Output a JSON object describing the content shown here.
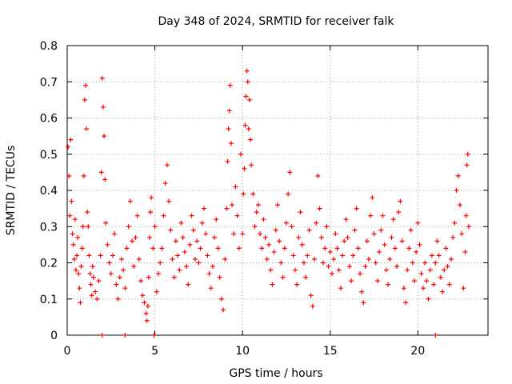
{
  "chart_data": {
    "type": "scatter",
    "title": "Day 348 of 2024, SRMTID for receiver falk",
    "xlabel": "GPS time / hours",
    "ylabel": "SRMTID / TECUs",
    "xlim": [
      0,
      24
    ],
    "ylim": [
      0,
      0.8
    ],
    "xticks": [
      0,
      5,
      10,
      15,
      20
    ],
    "xtick_labels": [
      "0",
      "5",
      "10",
      "15",
      "20"
    ],
    "yticks": [
      0,
      0.1,
      0.2,
      0.3,
      0.4,
      0.5,
      0.6,
      0.7,
      0.8
    ],
    "ytick_labels": [
      "0",
      "0.1",
      "0.2",
      "0.3",
      "0.4",
      "0.5",
      "0.6",
      "0.7",
      "0.8"
    ],
    "grid": true,
    "marker": "+",
    "color": "#ff0000",
    "series": [
      {
        "name": "SRMTID",
        "points": [
          [
            0.05,
            0.52
          ],
          [
            0.1,
            0.44
          ],
          [
            0.15,
            0.33
          ],
          [
            0.2,
            0.54
          ],
          [
            0.25,
            0.37
          ],
          [
            0.3,
            0.28
          ],
          [
            0.35,
            0.25
          ],
          [
            0.4,
            0.21
          ],
          [
            0.45,
            0.32
          ],
          [
            0.5,
            0.18
          ],
          [
            0.55,
            0.22
          ],
          [
            0.6,
            0.27
          ],
          [
            0.65,
            0.17
          ],
          [
            0.7,
            0.13
          ],
          [
            0.75,
            0.09
          ],
          [
            0.8,
            0.19
          ],
          [
            0.85,
            0.24
          ],
          [
            0.9,
            0.3
          ],
          [
            0.95,
            0.44
          ],
          [
            1.0,
            0.65
          ],
          [
            1.05,
            0.69
          ],
          [
            1.1,
            0.57
          ],
          [
            1.15,
            0.34
          ],
          [
            1.2,
            0.3
          ],
          [
            1.25,
            0.22
          ],
          [
            1.3,
            0.17
          ],
          [
            1.35,
            0.14
          ],
          [
            1.4,
            0.11
          ],
          [
            1.45,
            0.19
          ],
          [
            1.5,
            0.16
          ],
          [
            1.6,
            0.12
          ],
          [
            1.7,
            0.1
          ],
          [
            1.8,
            0.15
          ],
          [
            1.9,
            0.22
          ],
          [
            1.95,
            0.45
          ],
          [
            2.0,
            0.71
          ],
          [
            2.05,
            0.63
          ],
          [
            2.1,
            0.55
          ],
          [
            2.15,
            0.43
          ],
          [
            2.2,
            0.31
          ],
          [
            2.3,
            0.25
          ],
          [
            2.4,
            0.2
          ],
          [
            2.5,
            0.17
          ],
          [
            2.6,
            0.22
          ],
          [
            2.7,
            0.28
          ],
          [
            2.8,
            0.14
          ],
          [
            2.9,
            0.1
          ],
          [
            3.0,
            0.16
          ],
          [
            3.1,
            0.21
          ],
          [
            3.2,
            0.18
          ],
          [
            3.3,
            0.13
          ],
          [
            3.4,
            0.24
          ],
          [
            3.5,
            0.3
          ],
          [
            3.6,
            0.37
          ],
          [
            3.7,
            0.26
          ],
          [
            3.8,
            0.19
          ],
          [
            3.9,
            0.27
          ],
          [
            4.0,
            0.33
          ],
          [
            4.1,
            0.21
          ],
          [
            4.2,
            0.15
          ],
          [
            4.3,
            0.11
          ],
          [
            4.4,
            0.09
          ],
          [
            4.5,
            0.06
          ],
          [
            4.55,
            0.04
          ],
          [
            4.6,
            0.08
          ],
          [
            4.65,
            0.16
          ],
          [
            4.7,
            0.27
          ],
          [
            4.75,
            0.34
          ],
          [
            4.8,
            0.38
          ],
          [
            4.9,
            0.24
          ],
          [
            5.0,
            0.3
          ],
          [
            5.1,
            0.12
          ],
          [
            5.2,
            0.17
          ],
          [
            5.3,
            0.2
          ],
          [
            5.4,
            0.24
          ],
          [
            5.5,
            0.33
          ],
          [
            5.6,
            0.42
          ],
          [
            5.7,
            0.47
          ],
          [
            5.8,
            0.37
          ],
          [
            5.9,
            0.29
          ],
          [
            6.0,
            0.21
          ],
          [
            6.1,
            0.16
          ],
          [
            6.2,
            0.26
          ],
          [
            6.3,
            0.22
          ],
          [
            6.4,
            0.18
          ],
          [
            6.5,
            0.31
          ],
          [
            6.6,
            0.27
          ],
          [
            6.7,
            0.23
          ],
          [
            6.8,
            0.19
          ],
          [
            6.9,
            0.14
          ],
          [
            7.0,
            0.25
          ],
          [
            7.1,
            0.33
          ],
          [
            7.2,
            0.29
          ],
          [
            7.3,
            0.21
          ],
          [
            7.4,
            0.26
          ],
          [
            7.5,
            0.2
          ],
          [
            7.6,
            0.24
          ],
          [
            7.7,
            0.31
          ],
          [
            7.8,
            0.35
          ],
          [
            7.9,
            0.28
          ],
          [
            8.0,
            0.22
          ],
          [
            8.1,
            0.17
          ],
          [
            8.2,
            0.13
          ],
          [
            8.3,
            0.19
          ],
          [
            8.4,
            0.27
          ],
          [
            8.5,
            0.32
          ],
          [
            8.6,
            0.24
          ],
          [
            8.7,
            0.16
          ],
          [
            8.8,
            0.1
          ],
          [
            8.9,
            0.07
          ],
          [
            9.0,
            0.21
          ],
          [
            9.1,
            0.35
          ],
          [
            9.15,
            0.48
          ],
          [
            9.2,
            0.57
          ],
          [
            9.25,
            0.62
          ],
          [
            9.3,
            0.69
          ],
          [
            9.35,
            0.53
          ],
          [
            9.4,
            0.36
          ],
          [
            9.5,
            0.28
          ],
          [
            9.6,
            0.41
          ],
          [
            9.7,
            0.33
          ],
          [
            9.8,
            0.24
          ],
          [
            9.9,
            0.5
          ],
          [
            10.0,
            0.28
          ],
          [
            10.05,
            0.39
          ],
          [
            10.1,
            0.46
          ],
          [
            10.15,
            0.58
          ],
          [
            10.2,
            0.66
          ],
          [
            10.25,
            0.73
          ],
          [
            10.3,
            0.7
          ],
          [
            10.35,
            0.57
          ],
          [
            10.4,
            0.65
          ],
          [
            10.45,
            0.54
          ],
          [
            10.5,
            0.47
          ],
          [
            10.6,
            0.39
          ],
          [
            10.7,
            0.3
          ],
          [
            10.8,
            0.34
          ],
          [
            10.9,
            0.36
          ],
          [
            11.0,
            0.28
          ],
          [
            11.1,
            0.24
          ],
          [
            11.2,
            0.32
          ],
          [
            11.3,
            0.27
          ],
          [
            11.4,
            0.21
          ],
          [
            11.5,
            0.25
          ],
          [
            11.6,
            0.18
          ],
          [
            11.7,
            0.14
          ],
          [
            11.8,
            0.23
          ],
          [
            11.9,
            0.29
          ],
          [
            12.0,
            0.36
          ],
          [
            12.1,
            0.26
          ],
          [
            12.2,
            0.2
          ],
          [
            12.3,
            0.16
          ],
          [
            12.4,
            0.24
          ],
          [
            12.5,
            0.31
          ],
          [
            12.6,
            0.39
          ],
          [
            12.7,
            0.45
          ],
          [
            12.8,
            0.3
          ],
          [
            12.9,
            0.22
          ],
          [
            13.0,
            0.18
          ],
          [
            13.1,
            0.14
          ],
          [
            13.2,
            0.27
          ],
          [
            13.3,
            0.34
          ],
          [
            13.4,
            0.25
          ],
          [
            13.5,
            0.2
          ],
          [
            13.6,
            0.16
          ],
          [
            13.7,
            0.22
          ],
          [
            13.8,
            0.29
          ],
          [
            13.9,
            0.11
          ],
          [
            14.0,
            0.08
          ],
          [
            14.1,
            0.21
          ],
          [
            14.2,
            0.31
          ],
          [
            14.3,
            0.44
          ],
          [
            14.4,
            0.35
          ],
          [
            14.5,
            0.27
          ],
          [
            14.6,
            0.2
          ],
          [
            14.7,
            0.24
          ],
          [
            14.8,
            0.3
          ],
          [
            14.9,
            0.19
          ],
          [
            15.0,
            0.23
          ],
          [
            15.1,
            0.17
          ],
          [
            15.2,
            0.21
          ],
          [
            15.3,
            0.28
          ],
          [
            15.4,
            0.24
          ],
          [
            15.5,
            0.18
          ],
          [
            15.6,
            0.13
          ],
          [
            15.7,
            0.22
          ],
          [
            15.8,
            0.26
          ],
          [
            15.9,
            0.32
          ],
          [
            16.0,
            0.27
          ],
          [
            16.1,
            0.19
          ],
          [
            16.2,
            0.15
          ],
          [
            16.3,
            0.22
          ],
          [
            16.4,
            0.29
          ],
          [
            16.5,
            0.35
          ],
          [
            16.6,
            0.24
          ],
          [
            16.7,
            0.17
          ],
          [
            16.8,
            0.12
          ],
          [
            16.9,
            0.09
          ],
          [
            17.0,
            0.19
          ],
          [
            17.1,
            0.26
          ],
          [
            17.2,
            0.21
          ],
          [
            17.3,
            0.33
          ],
          [
            17.4,
            0.38
          ],
          [
            17.5,
            0.28
          ],
          [
            17.6,
            0.2
          ],
          [
            17.7,
            0.15
          ],
          [
            17.8,
            0.23
          ],
          [
            17.9,
            0.29
          ],
          [
            18.0,
            0.33
          ],
          [
            18.1,
            0.25
          ],
          [
            18.2,
            0.18
          ],
          [
            18.3,
            0.14
          ],
          [
            18.4,
            0.21
          ],
          [
            18.5,
            0.27
          ],
          [
            18.6,
            0.32
          ],
          [
            18.7,
            0.24
          ],
          [
            18.8,
            0.19
          ],
          [
            18.9,
            0.34
          ],
          [
            19.0,
            0.37
          ],
          [
            19.1,
            0.26
          ],
          [
            19.2,
            0.13
          ],
          [
            19.3,
            0.09
          ],
          [
            19.4,
            0.18
          ],
          [
            19.5,
            0.24
          ],
          [
            19.6,
            0.29
          ],
          [
            19.7,
            0.2
          ],
          [
            19.8,
            0.15
          ],
          [
            19.9,
            0.23
          ],
          [
            20.0,
            0.31
          ],
          [
            20.1,
            0.25
          ],
          [
            20.2,
            0.17
          ],
          [
            20.3,
            0.13
          ],
          [
            20.4,
            0.2
          ],
          [
            20.5,
            0.15
          ],
          [
            20.6,
            0.1
          ],
          [
            20.7,
            0.18
          ],
          [
            20.8,
            0.22
          ],
          [
            20.9,
            0.14
          ],
          [
            21.0,
            0.2
          ],
          [
            21.1,
            0.26
          ],
          [
            21.2,
            0.22
          ],
          [
            21.3,
            0.16
          ],
          [
            21.4,
            0.12
          ],
          [
            21.5,
            0.18
          ],
          [
            21.6,
            0.24
          ],
          [
            21.7,
            0.19
          ],
          [
            21.8,
            0.14
          ],
          [
            21.9,
            0.21
          ],
          [
            22.0,
            0.27
          ],
          [
            22.1,
            0.31
          ],
          [
            22.2,
            0.4
          ],
          [
            22.3,
            0.44
          ],
          [
            22.4,
            0.36
          ],
          [
            22.5,
            0.28
          ],
          [
            22.6,
            0.13
          ],
          [
            22.7,
            0.23
          ],
          [
            22.75,
            0.33
          ],
          [
            22.8,
            0.47
          ],
          [
            22.85,
            0.5
          ],
          [
            22.9,
            0.3
          ],
          [
            2.0,
            0.0
          ],
          [
            3.3,
            0.0
          ],
          [
            4.95,
            0.0
          ],
          [
            21.0,
            0.0
          ]
        ]
      }
    ]
  }
}
